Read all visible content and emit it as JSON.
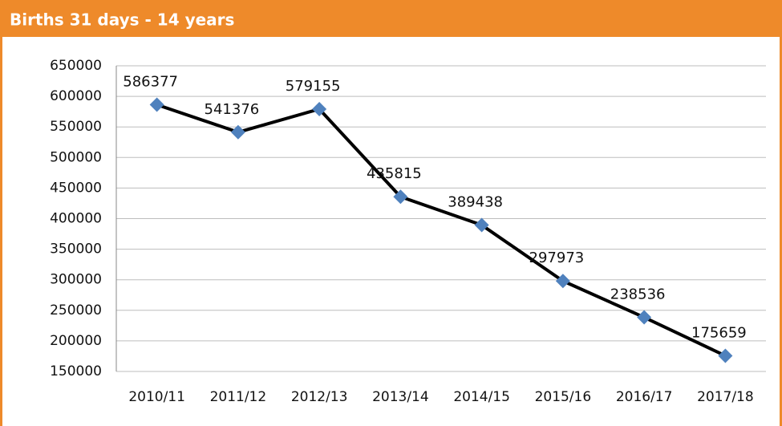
{
  "chart_data": {
    "type": "line",
    "title": "Births 31 days - 14 years",
    "categories": [
      "2010/11",
      "2011/12",
      "2012/13",
      "2013/14",
      "2014/15",
      "2015/16",
      "2016/17",
      "2017/18"
    ],
    "series": [
      {
        "name": "Births",
        "color": "#000000",
        "marker_color": "#4f81bd",
        "values": [
          586377,
          541376,
          579155,
          435815,
          389438,
          297973,
          238536,
          175659
        ]
      }
    ],
    "ylim": [
      150000,
      650000
    ],
    "yticks": [
      150000,
      200000,
      250000,
      300000,
      350000,
      400000,
      450000,
      500000,
      550000,
      600000,
      650000
    ],
    "grid": true
  }
}
